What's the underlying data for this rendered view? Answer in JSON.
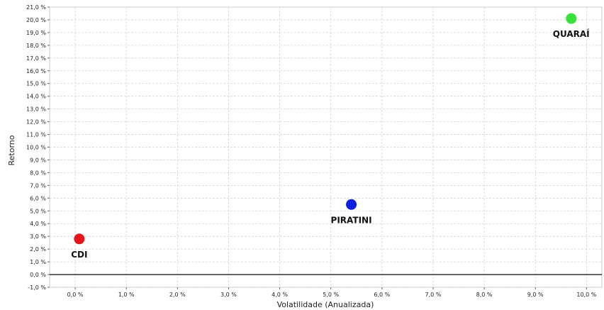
{
  "chart_data": {
    "type": "scatter",
    "xlabel": "Volatilidade (Anualizada)",
    "ylabel": "Retorno",
    "xlim": [
      -0.5,
      10.3
    ],
    "ylim": [
      -1.0,
      21.0
    ],
    "x_ticks": [
      0,
      1,
      2,
      3,
      4,
      5,
      6,
      7,
      8,
      9,
      10
    ],
    "y_ticks": [
      -1,
      0,
      1,
      2,
      3,
      4,
      5,
      6,
      7,
      8,
      9,
      10,
      11,
      12,
      13,
      14,
      15,
      16,
      17,
      18,
      19,
      20,
      21
    ],
    "tick_format": "{v},0 %",
    "grid": true,
    "zero_line": true,
    "points": [
      {
        "label": "CDI",
        "x": 0.08,
        "y": 2.8,
        "color": "#e8141b",
        "label_position": "below"
      },
      {
        "label": "PIRATINI",
        "x": 5.4,
        "y": 5.5,
        "color": "#0a1fe0",
        "label_position": "below"
      },
      {
        "label": "QUARAÍ",
        "x": 9.7,
        "y": 20.1,
        "color": "#38e03a",
        "label_position": "below"
      }
    ]
  }
}
